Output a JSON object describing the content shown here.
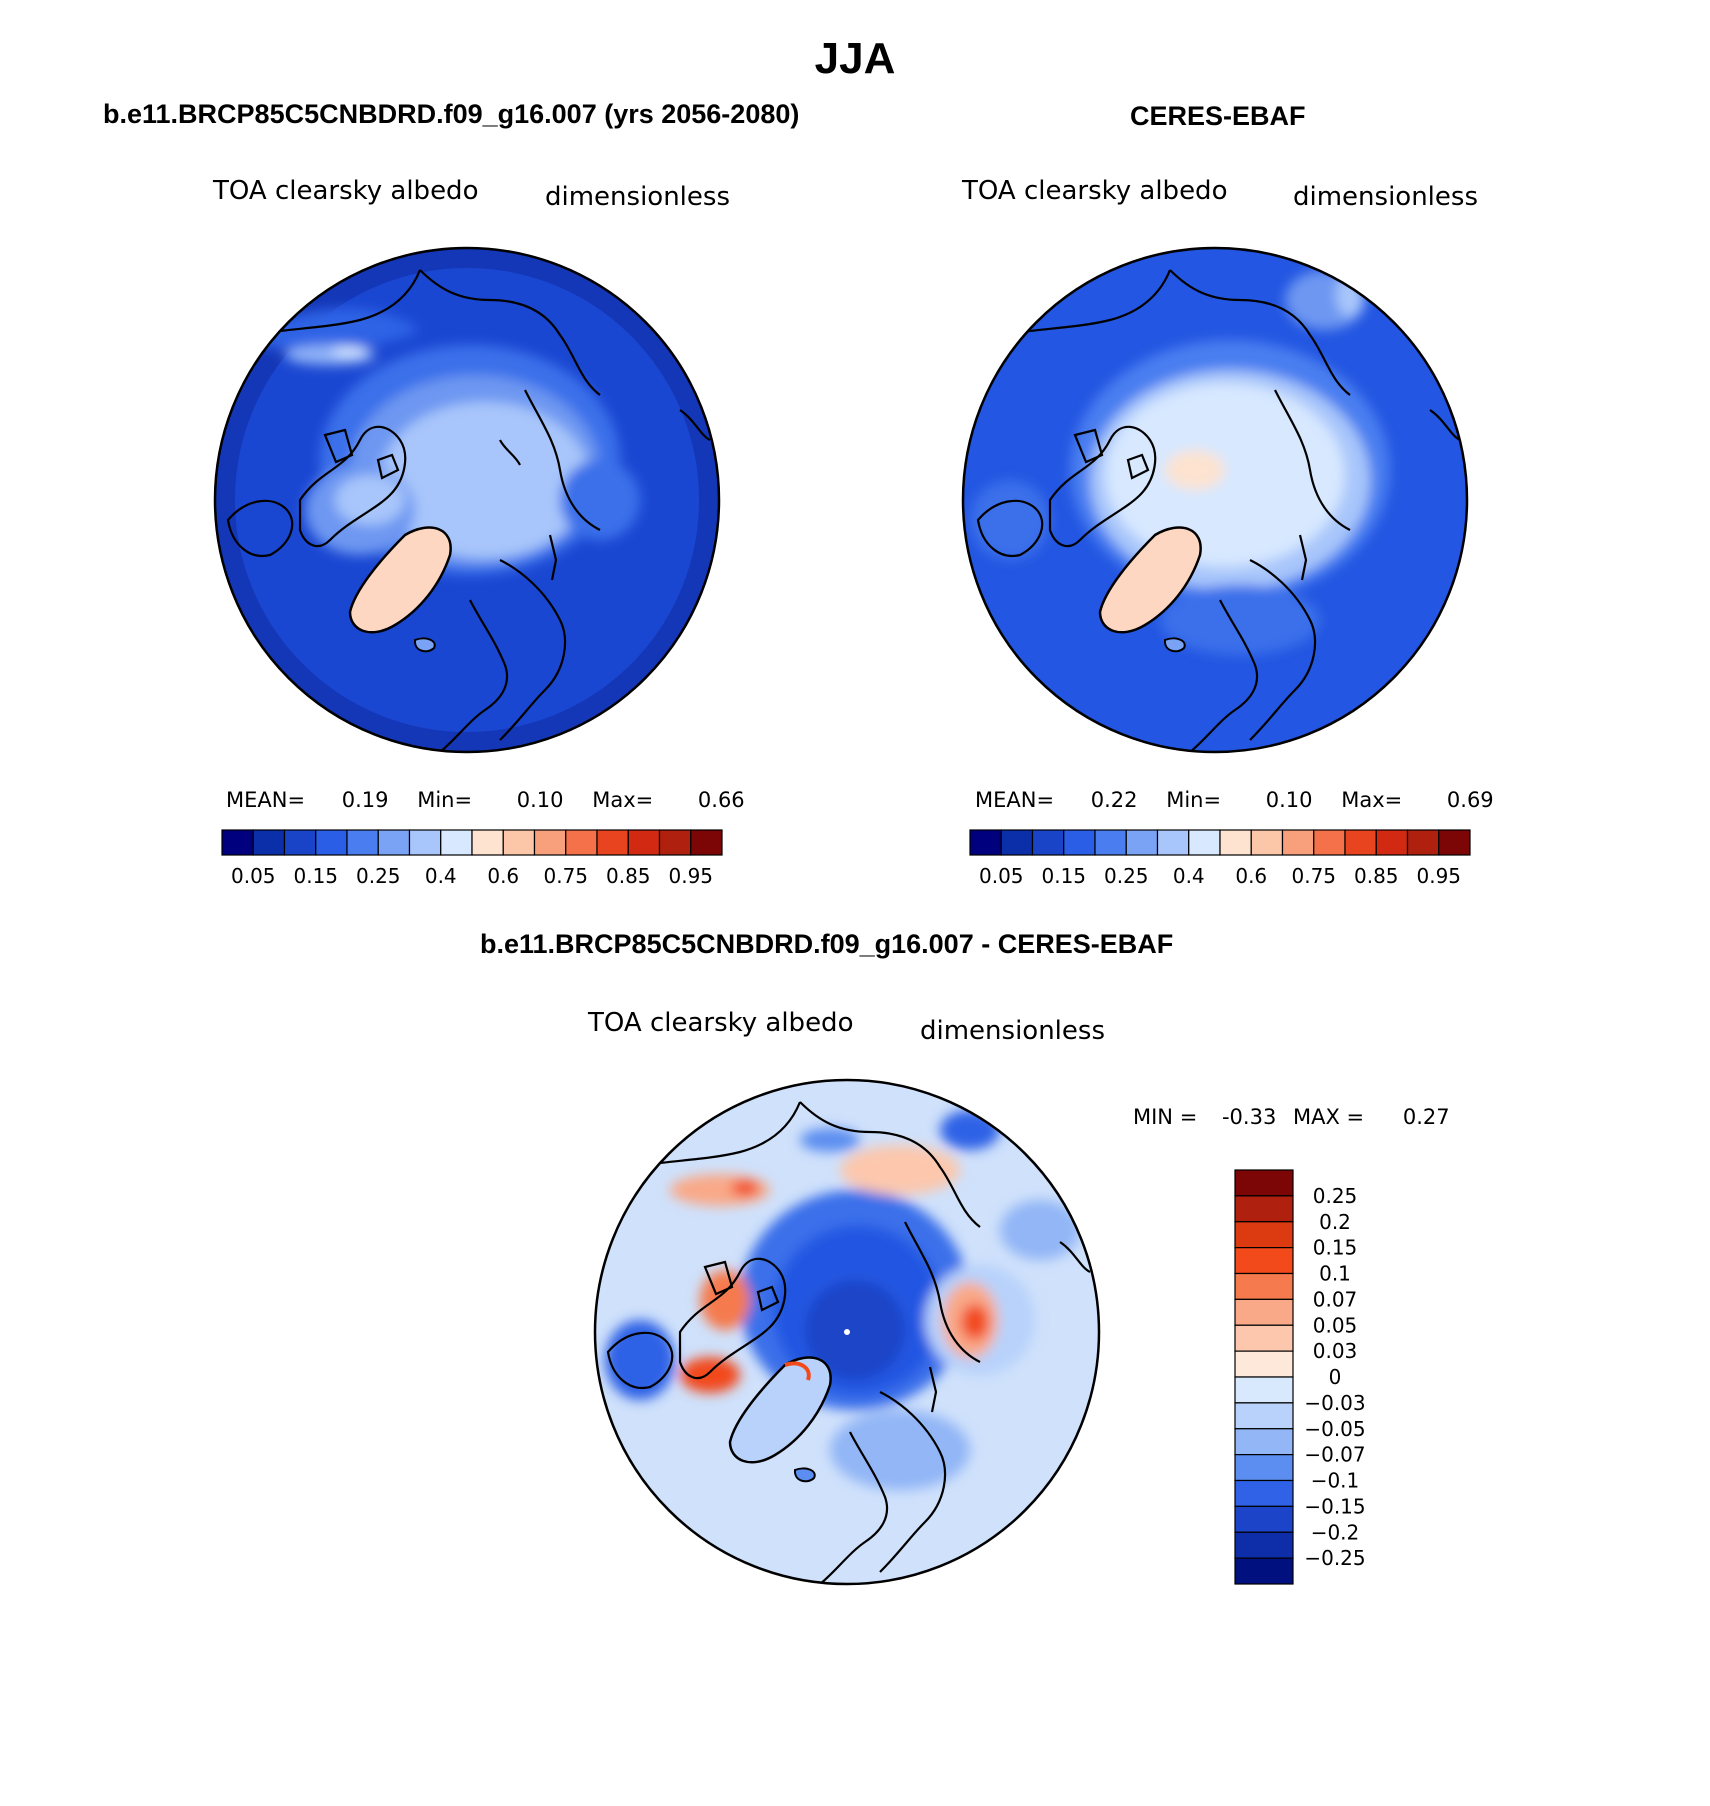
{
  "page_title": "JJA",
  "panels": [
    {
      "title": "b.e11.BRCP85C5CNBDRD.f09_g16.007 (yrs 2056-2080)",
      "variable": "TOA clearsky albedo",
      "units": "dimensionless",
      "stats": {
        "mean_label": "MEAN=",
        "mean": "0.19",
        "min_label": "Min=",
        "min": "0.10",
        "max_label": "Max=",
        "max": "0.66"
      },
      "colorbar": {
        "ticks": [
          "0.05",
          "0.15",
          "0.25",
          "0.4",
          "0.6",
          "0.75",
          "0.85",
          "0.95"
        ]
      }
    },
    {
      "title": "CERES-EBAF",
      "variable": "TOA clearsky albedo",
      "units": "dimensionless",
      "stats": {
        "mean_label": "MEAN=",
        "mean": "0.22",
        "min_label": "Min=",
        "min": "0.10",
        "max_label": "Max=",
        "max": "0.69"
      },
      "colorbar": {
        "ticks": [
          "0.05",
          "0.15",
          "0.25",
          "0.4",
          "0.6",
          "0.75",
          "0.85",
          "0.95"
        ]
      }
    }
  ],
  "diff_panel": {
    "title": "b.e11.BRCP85C5CNBDRD.f09_g16.007 - CERES-EBAF",
    "variable": "TOA clearsky albedo",
    "units": "dimensionless",
    "minmax": {
      "min_label": "MIN =",
      "min": "-0.33",
      "max_label": "MAX =",
      "max": "0.27"
    },
    "colorbar": {
      "ticks": [
        "0.25",
        "0.2",
        "0.15",
        "0.1",
        "0.07",
        "0.05",
        "0.03",
        "0",
        "-0.03",
        "-0.05",
        "-0.07",
        "-0.1",
        "-0.15",
        "-0.2",
        "-0.25"
      ]
    }
  },
  "colors": {
    "abs_scale": [
      "#00007f",
      "#0a2fa8",
      "#1a44c8",
      "#2a5ee6",
      "#4a7ef0",
      "#7aa3f5",
      "#a8c6fb",
      "#d7e8ff",
      "#fde3d0",
      "#fcc6a9",
      "#f7a07b",
      "#f4714a",
      "#e8441f",
      "#d22a12",
      "#b0200e",
      "#7c0606"
    ],
    "diff_scale": [
      "#7c0606",
      "#b0200e",
      "#dc3a10",
      "#f24a1a",
      "#f57a4d",
      "#f9a988",
      "#fcc7ad",
      "#fde8d9",
      "#d8e8fd",
      "#b8d2fb",
      "#92b6f6",
      "#5b8ef0",
      "#2f62e6",
      "#1c44c8",
      "#0d2ea8",
      "#00117f"
    ],
    "ocean_model": "#1e4fd9",
    "ocean_obs": "#2356e2",
    "diff_background": "#cfe1fb"
  }
}
